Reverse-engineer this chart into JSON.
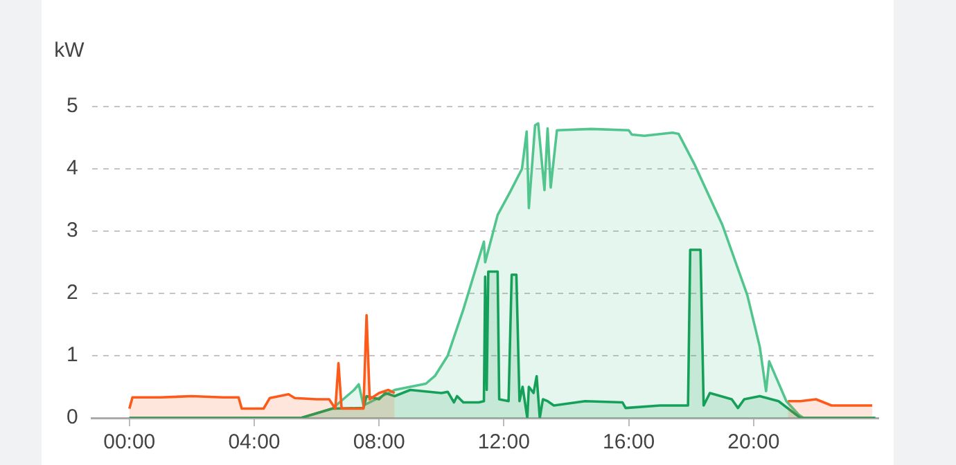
{
  "chart_data": {
    "type": "area",
    "ylabel": "kW",
    "xlim": [
      -1.2,
      24
    ],
    "ylim": [
      0,
      5
    ],
    "xticks": [
      {
        "value": 0,
        "label": "00:00"
      },
      {
        "value": 4,
        "label": "04:00"
      },
      {
        "value": 8,
        "label": "08:00"
      },
      {
        "value": 12,
        "label": "12:00"
      },
      {
        "value": 16,
        "label": "16:00"
      },
      {
        "value": 20,
        "label": "20:00"
      }
    ],
    "yticks": [
      0,
      1,
      2,
      3,
      4,
      5
    ],
    "grid": "y",
    "legend": false,
    "series": [
      {
        "color": "#52c58e",
        "x": [
          0,
          5.5,
          6.5,
          7.2,
          7.35,
          7.5,
          8.5,
          9.5,
          9.8,
          10.2,
          10.7,
          11.1,
          11.36,
          11.4,
          11.8,
          12.2,
          12.58,
          12.73,
          12.8,
          13.0,
          13.1,
          13.3,
          13.4,
          13.5,
          13.7,
          14.8,
          16.0,
          16.1,
          16.5,
          17.4,
          17.6,
          18.1,
          19.0,
          19.8,
          20.2,
          20.4,
          20.5,
          21.05,
          21.45,
          21.6,
          23.9
        ],
        "values": [
          0,
          0,
          0.15,
          0.45,
          0.54,
          0.2,
          0.45,
          0.55,
          0.68,
          1.0,
          1.74,
          2.4,
          2.83,
          2.5,
          3.26,
          3.63,
          4.0,
          4.6,
          3.37,
          4.7,
          4.73,
          3.66,
          4.65,
          3.7,
          4.62,
          4.64,
          4.62,
          4.55,
          4.53,
          4.58,
          4.56,
          4.08,
          3.1,
          1.97,
          1.14,
          0.43,
          0.91,
          0.27,
          0.05,
          0,
          0
        ]
      },
      {
        "color": "#15a05a",
        "x": [
          0,
          5.5,
          6.5,
          7.5,
          7.6,
          8.0,
          8.2,
          8.5,
          9.0,
          10.0,
          10.2,
          10.4,
          10.5,
          10.7,
          11.2,
          11.36,
          11.4,
          11.45,
          11.5,
          11.8,
          11.85,
          12.15,
          12.25,
          12.4,
          12.5,
          12.6,
          12.75,
          12.8,
          12.95,
          13.05,
          13.15,
          13.25,
          13.4,
          13.6,
          14.6,
          15.8,
          15.9,
          17.0,
          17.9,
          17.97,
          18.3,
          18.4,
          18.6,
          19.3,
          19.5,
          19.7,
          20.2,
          20.8,
          21.5,
          23.9
        ],
        "values": [
          0,
          0,
          0.15,
          0.16,
          0.35,
          0.3,
          0.4,
          0.35,
          0.45,
          0.4,
          0.42,
          0.25,
          0.35,
          0.25,
          0.25,
          0.27,
          2.27,
          0.45,
          2.35,
          2.35,
          0.3,
          0.27,
          2.3,
          2.3,
          0.27,
          0.5,
          0,
          0.5,
          0.4,
          0.67,
          0,
          0.3,
          0.27,
          0.2,
          0.27,
          0.25,
          0.16,
          0.2,
          0.2,
          2.7,
          2.7,
          0.2,
          0.4,
          0.3,
          0.16,
          0.3,
          0.35,
          0.27,
          0,
          0
        ]
      },
      {
        "color": "#fc5a1a",
        "x": [
          0,
          0.1,
          1.0,
          2.0,
          3.0,
          3.5,
          3.6,
          4.0,
          4.3,
          4.5,
          5.1,
          5.3,
          6.0,
          6.4,
          6.6,
          6.7,
          6.8,
          7.5,
          7.6,
          7.7,
          8.0,
          8.3,
          8.5,
          8.6,
          21.1,
          21.5,
          22.0,
          22.5,
          23.8
        ],
        "values": [
          0.15,
          0.33,
          0.33,
          0.35,
          0.33,
          0.33,
          0.15,
          0.15,
          0.15,
          0.32,
          0.38,
          0.32,
          0.3,
          0.3,
          0.15,
          0.88,
          0.15,
          0.15,
          1.65,
          0.3,
          0.4,
          0.45,
          0.4,
          null,
          0.27,
          0.27,
          0.3,
          0.2,
          0.2
        ]
      }
    ]
  }
}
